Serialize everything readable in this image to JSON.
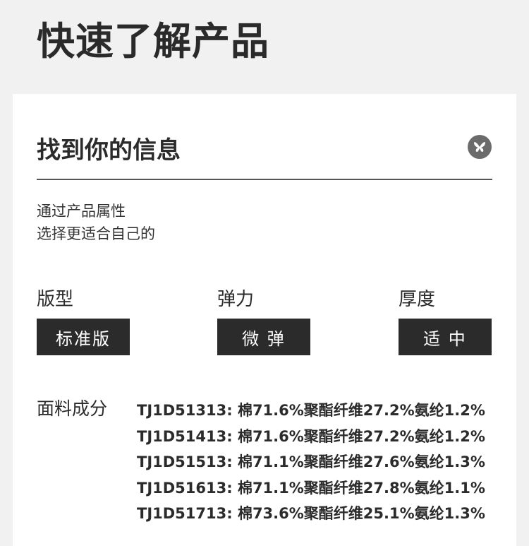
{
  "page_title": "快速了解产品",
  "card": {
    "heading": "找到你的信息",
    "logo_icon": "butterfly-icon",
    "intro": [
      "通过产品属性",
      "选择更适合自己的"
    ],
    "attributes": [
      {
        "label": "版型",
        "value": "标准版"
      },
      {
        "label": "弹力",
        "value": "微 弹"
      },
      {
        "label": "厚度",
        "value": "适 中"
      }
    ],
    "fabric": {
      "label": "面料成分",
      "rows": [
        "TJ1D51313: 棉71.6%聚酯纤维27.2%氨纶1.2%",
        "TJ1D51413: 棉71.6%聚酯纤维27.2%氨纶1.2%",
        "TJ1D51513: 棉71.1%聚酯纤维27.6%氨纶1.3%",
        "TJ1D51613: 棉71.1%聚酯纤维27.8%氨纶1.1%",
        "TJ1D51713: 棉73.6%聚酯纤维25.1%氨纶1.3%"
      ]
    }
  },
  "colors": {
    "tag_bg": "#2b2b2b",
    "logo_bg": "#6b6b6b",
    "page_bg": "#f1f1f1"
  }
}
